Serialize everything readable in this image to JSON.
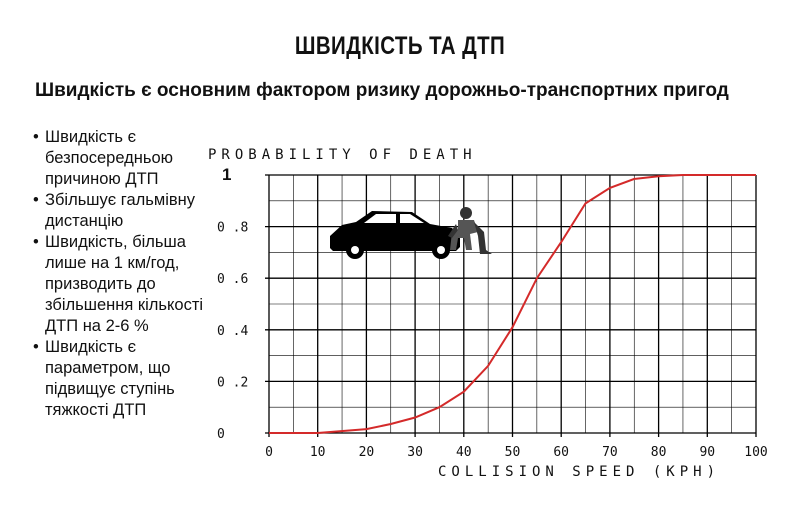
{
  "slide": {
    "title": "ШВИДКІСТЬ ТА ДТП",
    "subtitle": "Швидкість є основним фактором ризику дорожньо-транспортних пригод",
    "bullets": [
      [
        "Швидкість є",
        "безпосередньою",
        "причиною ДТП"
      ],
      [
        "Збільшує гальмівну",
        "дистанцію"
      ],
      [
        "Швидкість, більша",
        "лише на 1 км/год,",
        "призводить до",
        "збільшення кількості",
        "ДТП на 2-6 %"
      ],
      [
        "Швидкість є",
        "параметром, що",
        "підвищує ступінь",
        "тяжкості ДТП"
      ]
    ]
  },
  "chart_data": {
    "type": "line",
    "ylabel": "PROBABILITY OF DEATH",
    "xlabel": "COLLISION SPEED (KPH)",
    "xlim": [
      0,
      100
    ],
    "ylim": [
      0,
      1
    ],
    "x_ticks": [
      "0",
      "10",
      "20",
      "30",
      "40",
      "50",
      "60",
      "70",
      "80",
      "90",
      "100"
    ],
    "y_ticks": [
      "0",
      "0.2",
      "0.4",
      "0.6",
      "0.8",
      "1"
    ],
    "grid": true,
    "line_color": "#d42a2a",
    "icons": [
      "car-icon",
      "pedestrian-icon"
    ],
    "series": [
      {
        "x": [
          0,
          10,
          20,
          25,
          30,
          35,
          40,
          45,
          50,
          55,
          60,
          65,
          70,
          75,
          80,
          85,
          90,
          100
        ],
        "y": [
          0.0,
          0.0,
          0.015,
          0.035,
          0.06,
          0.1,
          0.16,
          0.26,
          0.41,
          0.6,
          0.74,
          0.89,
          0.95,
          0.985,
          0.995,
          1.0,
          1.0,
          1.0
        ]
      }
    ]
  }
}
